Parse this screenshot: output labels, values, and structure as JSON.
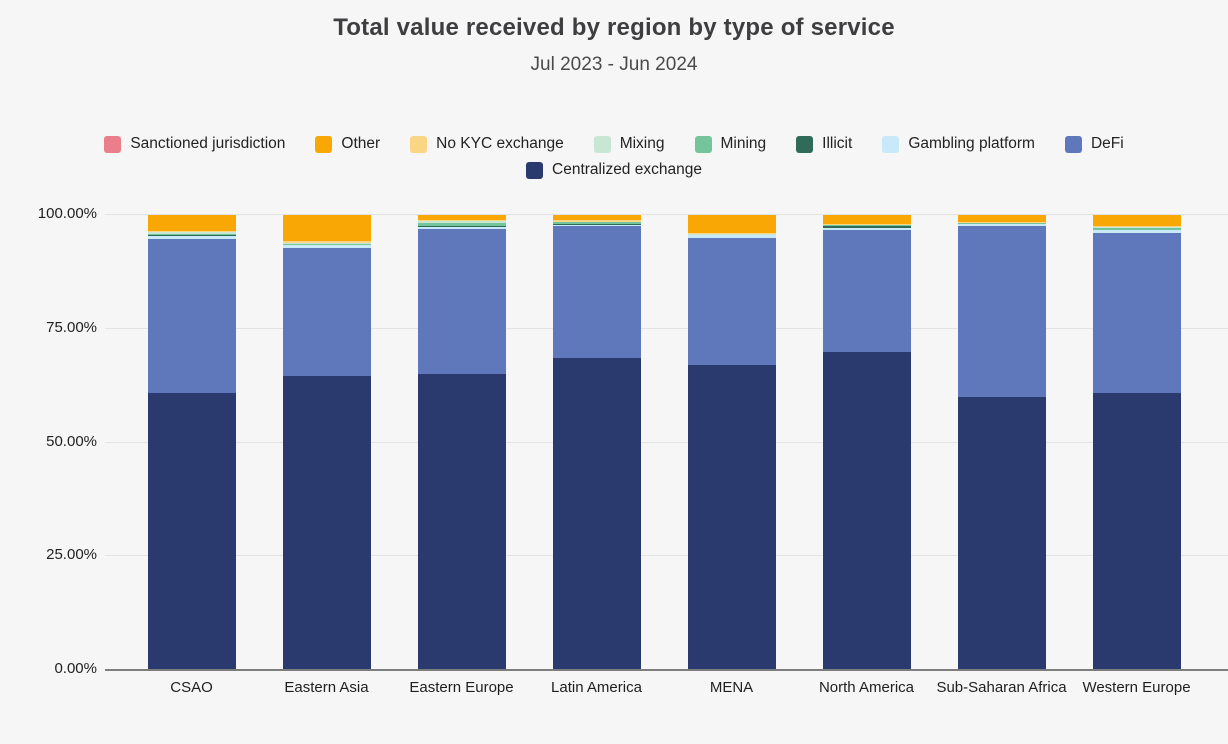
{
  "title": "Total value received by region by type of service",
  "subtitle": "Jul 2023 - Jun 2024",
  "colors": {
    "background": "#f6f6f7",
    "gridline": "#e3e3e4",
    "axis_line": "#7d7d80",
    "title_text": "#3e3e40",
    "tick_text": "#1f1f1f"
  },
  "chart_data": {
    "type": "bar",
    "variant": "stacked-100-percent",
    "title": "Total value received by region by type of service",
    "subtitle": "Jul 2023 - Jun 2024",
    "xlabel": "",
    "ylabel": "",
    "ylim": [
      0,
      100
    ],
    "grid": true,
    "legend_position": "top",
    "stack_order": "first series is top of stack",
    "categories": [
      "CSAO",
      "Eastern Asia",
      "Eastern Europe",
      "Latin America",
      "MENA",
      "North America",
      "Sub-Saharan Africa",
      "Western Europe"
    ],
    "y_ticks": [
      {
        "label": "0.00%",
        "value": 0
      },
      {
        "label": "25.00%",
        "value": 25
      },
      {
        "label": "50.00%",
        "value": 50
      },
      {
        "label": "75.00%",
        "value": 75
      },
      {
        "label": "100.00%",
        "value": 100
      }
    ],
    "series": [
      {
        "name": "Sanctioned jurisdiction",
        "color": "#ec7e8c",
        "values": [
          0.05,
          0.05,
          0.1,
          0.05,
          0.1,
          0.05,
          0.05,
          0.05
        ]
      },
      {
        "name": "Other",
        "color": "#f9a705",
        "values": [
          3.5,
          5.7,
          1.0,
          1.1,
          3.9,
          2.0,
          1.4,
          2.4
        ]
      },
      {
        "name": "No KYC exchange",
        "color": "#fad584",
        "values": [
          0.15,
          0.3,
          0.3,
          0.4,
          0.2,
          0.1,
          0.25,
          0.15
        ]
      },
      {
        "name": "Mixing",
        "color": "#c8e6d4",
        "values": [
          0.4,
          0.4,
          0.3,
          0.1,
          0.1,
          0.15,
          0.1,
          0.3
        ]
      },
      {
        "name": "Mining",
        "color": "#74c49c",
        "values": [
          0.4,
          0.1,
          0.8,
          0.4,
          0.1,
          0.1,
          0.1,
          0.3
        ]
      },
      {
        "name": "Illicit",
        "color": "#2f6b58",
        "values": [
          0.1,
          0.05,
          0.1,
          0.05,
          0.1,
          0.5,
          0.1,
          0.1
        ]
      },
      {
        "name": "Gambling platform",
        "color": "#c8e9f8",
        "values": [
          0.7,
          0.6,
          0.4,
          0.3,
          0.6,
          0.3,
          0.5,
          0.6
        ]
      },
      {
        "name": "DeFi",
        "color": "#5e78bb",
        "values": [
          33.9,
          28.3,
          32.0,
          29.0,
          27.9,
          26.9,
          37.5,
          35.2
        ]
      },
      {
        "name": "Centralized exchange",
        "color": "#2b3a6e",
        "values": [
          60.8,
          64.5,
          65.0,
          68.6,
          67.0,
          69.9,
          60.0,
          60.9
        ]
      }
    ]
  }
}
